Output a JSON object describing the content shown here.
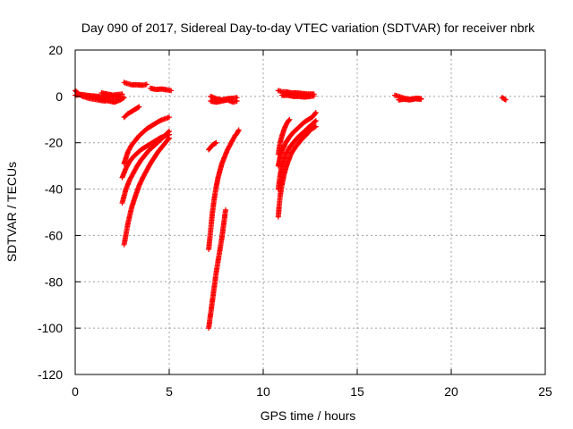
{
  "chart_data": {
    "type": "scatter",
    "title": "Day 090 of 2017, Sidereal Day-to-day VTEC variation (SDTVAR) for receiver nbrk",
    "xlabel": "GPS time / hours",
    "ylabel": "SDTVAR / TECUs",
    "xlim": [
      0,
      25
    ],
    "ylim": [
      -120,
      20
    ],
    "xticks": [
      0,
      5,
      10,
      15,
      20,
      25
    ],
    "yticks": [
      20,
      0,
      -20,
      -40,
      -60,
      -80,
      -100,
      -120
    ],
    "grid": true,
    "legend": "none",
    "marker": "+",
    "color": "#ff0000",
    "segments": [
      {
        "x": [
          0.0,
          0.2,
          0.4,
          0.6,
          0.8,
          1.0,
          1.2,
          1.4,
          1.6
        ],
        "y": [
          2.5,
          1.0,
          0.0,
          -0.5,
          -1.0,
          -1.2,
          -1.5,
          -1.8,
          -2.0
        ]
      },
      {
        "x": [
          0.0,
          0.3,
          0.6,
          0.9,
          1.2,
          1.5,
          1.8,
          2.1,
          2.4
        ],
        "y": [
          0.5,
          0.8,
          0.5,
          0.2,
          0.0,
          -0.3,
          -0.5,
          -0.6,
          -0.5
        ]
      },
      {
        "x": [
          1.2,
          1.5,
          1.8,
          2.1,
          2.4,
          2.6
        ],
        "y": [
          -1.0,
          -1.5,
          -2.0,
          -2.5,
          -1.5,
          -0.5
        ]
      },
      {
        "x": [
          1.4,
          1.7,
          2.0,
          2.3,
          2.5
        ],
        "y": [
          1.5,
          1.0,
          0.5,
          0.8,
          1.0
        ]
      },
      {
        "x": [
          2.6,
          2.8,
          3.0,
          3.2,
          3.4
        ],
        "y": [
          -9.0,
          -7.5,
          -6.5,
          -5.5,
          -4.5
        ]
      },
      {
        "x": [
          2.6,
          2.8,
          3.0,
          3.3,
          3.6,
          3.8
        ],
        "y": [
          6.0,
          5.5,
          5.0,
          5.0,
          4.8,
          5.2
        ]
      },
      {
        "x": [
          4.0,
          4.3,
          4.6,
          4.9,
          5.1
        ],
        "y": [
          3.5,
          3.0,
          3.2,
          2.8,
          2.5
        ]
      },
      {
        "x": [
          2.6,
          2.8,
          3.0,
          3.2,
          3.4,
          3.6,
          3.8,
          4.0,
          4.2,
          4.4,
          4.6,
          4.8,
          5.0
        ],
        "y": [
          -29,
          -24,
          -21,
          -19,
          -17,
          -15.5,
          -14,
          -13,
          -12,
          -11,
          -10.2,
          -9.6,
          -9
        ]
      },
      {
        "x": [
          2.5,
          2.7,
          2.9,
          3.1,
          3.3,
          3.5,
          3.7,
          3.9,
          4.1,
          4.3,
          4.5,
          4.7,
          5.0
        ],
        "y": [
          -35,
          -31,
          -28,
          -26,
          -24.5,
          -23,
          -22,
          -21,
          -20,
          -19,
          -18,
          -17.3,
          -16.5
        ]
      },
      {
        "x": [
          2.5,
          2.7,
          2.9,
          3.1,
          3.3,
          3.5,
          3.7,
          3.9,
          4.1,
          4.3,
          4.5,
          4.7,
          5.0
        ],
        "y": [
          -46,
          -40,
          -36,
          -33,
          -30,
          -27.5,
          -25.5,
          -23.5,
          -22,
          -20.5,
          -19,
          -17.5,
          -15
        ]
      },
      {
        "x": [
          2.6,
          2.8,
          3.0,
          3.2,
          3.4,
          3.6,
          3.8,
          4.0,
          4.2,
          4.4,
          4.6,
          4.8,
          5.0
        ],
        "y": [
          -64,
          -55,
          -48,
          -43,
          -38.5,
          -35,
          -32,
          -29,
          -26.5,
          -24,
          -22,
          -20,
          -18
        ]
      },
      {
        "x": [
          7.1,
          7.2,
          7.3,
          7.5
        ],
        "y": [
          -23,
          -22,
          -21,
          -20
        ]
      },
      {
        "x": [
          7.2,
          7.5,
          7.8,
          8.1,
          8.4,
          8.6
        ],
        "y": [
          0,
          -1,
          -1.5,
          -1.0,
          -0.8,
          -0.5
        ]
      },
      {
        "x": [
          7.2,
          7.5,
          7.8,
          8.1,
          8.4,
          8.6
        ],
        "y": [
          -2.0,
          -2.5,
          -2.0,
          -1.5,
          -2.5,
          -2.0
        ]
      },
      {
        "x": [
          7.1,
          7.2,
          7.3,
          7.4,
          7.5,
          7.6,
          7.7,
          7.8,
          7.9,
          8.0,
          8.1,
          8.2,
          8.3,
          8.4,
          8.5,
          8.6,
          8.7
        ],
        "y": [
          -66,
          -58,
          -50,
          -44,
          -39,
          -35,
          -32,
          -29,
          -27,
          -25,
          -23,
          -21.5,
          -20,
          -18.5,
          -17,
          -16,
          -14.5
        ]
      },
      {
        "x": [
          7.1,
          7.2,
          7.3,
          7.4,
          7.5,
          7.6,
          7.7,
          7.8,
          7.9,
          8.0
        ],
        "y": [
          -100,
          -94,
          -88,
          -82,
          -76,
          -71,
          -66,
          -61,
          -55,
          -49
        ]
      },
      {
        "x": [
          10.8,
          11.0,
          11.2,
          11.5,
          11.8,
          12.1,
          12.4,
          12.7
        ],
        "y": [
          2.5,
          2.0,
          2.0,
          1.5,
          1.5,
          1.2,
          1.0,
          1.0
        ]
      },
      {
        "x": [
          11.0,
          11.3,
          11.6,
          11.9,
          12.2,
          12.5,
          12.7
        ],
        "y": [
          0.5,
          0.5,
          0.0,
          0.0,
          -0.3,
          0.0,
          0.2
        ]
      },
      {
        "x": [
          10.8,
          10.9,
          11.0,
          11.1,
          11.2,
          11.3,
          11.4
        ],
        "y": [
          -25,
          -20,
          -17,
          -14.5,
          -12.5,
          -11,
          -10
        ]
      },
      {
        "x": [
          10.8,
          10.9,
          11.0,
          11.2,
          11.4,
          11.6,
          11.8,
          12.0,
          12.2,
          12.4,
          12.6,
          12.8
        ],
        "y": [
          -30,
          -26,
          -23.5,
          -20,
          -17.5,
          -15.5,
          -14,
          -12.5,
          -11,
          -10,
          -9,
          -7
        ]
      },
      {
        "x": [
          10.8,
          10.9,
          11.0,
          11.2,
          11.4,
          11.6,
          11.8,
          12.0,
          12.2,
          12.4,
          12.6,
          12.8
        ],
        "y": [
          -40,
          -34,
          -30,
          -25,
          -22,
          -20,
          -18,
          -16.5,
          -15,
          -13.5,
          -12,
          -10.5
        ]
      },
      {
        "x": [
          10.8,
          10.85,
          10.9,
          11.0,
          11.1,
          11.2,
          11.3,
          11.4,
          11.5,
          11.7,
          11.9,
          12.1,
          12.3,
          12.5,
          12.8
        ],
        "y": [
          -52,
          -47,
          -43,
          -38,
          -34,
          -31,
          -28.5,
          -26.5,
          -24.5,
          -22,
          -20,
          -18,
          -16.5,
          -14.5,
          -13
        ]
      },
      {
        "x": [
          17.0,
          17.2,
          17.4,
          17.6,
          17.8,
          18.0,
          18.2,
          18.4
        ],
        "y": [
          0.5,
          0.0,
          -0.5,
          -1.0,
          -1.2,
          -1.0,
          -0.8,
          -1.0
        ]
      },
      {
        "x": [
          17.2,
          17.5,
          17.8,
          18.1,
          18.4
        ],
        "y": [
          -1.5,
          -1.2,
          -1.5,
          -1.0,
          -1.2
        ]
      },
      {
        "x": [
          22.7,
          22.8,
          22.9
        ],
        "y": [
          -0.5,
          -1.0,
          -1.5
        ]
      }
    ]
  }
}
